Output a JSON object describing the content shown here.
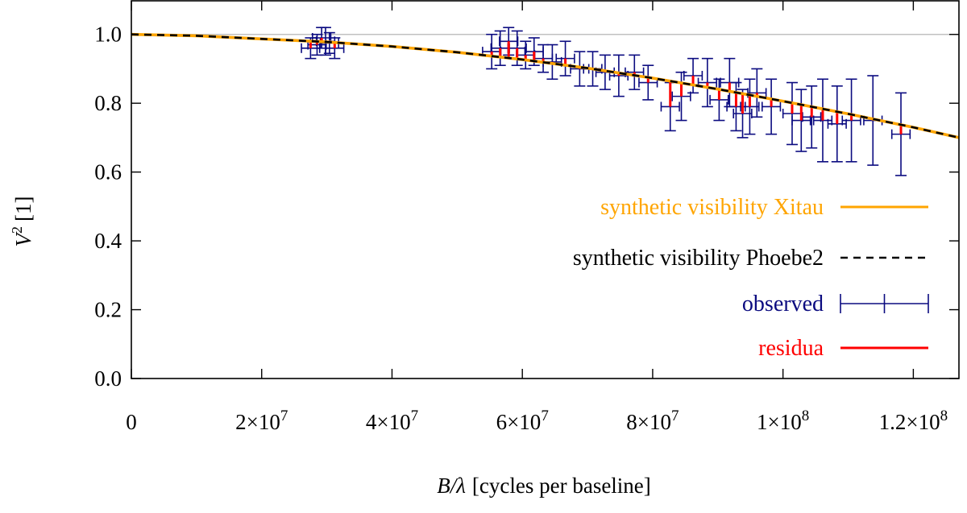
{
  "chart_data": {
    "type": "scatter",
    "title": "",
    "xlabel": {
      "var": "B/λ",
      "unit": "[cycles per baseline]"
    },
    "ylabel": {
      "var": "V",
      "sup": "2",
      "unit": "[1]"
    },
    "xlim": [
      0,
      127000000
    ],
    "ylim": [
      0,
      1.1
    ],
    "x_ticks": [
      {
        "value": 0,
        "base": "0",
        "exp": ""
      },
      {
        "value": 20000000,
        "base": "2×10",
        "exp": "7"
      },
      {
        "value": 40000000,
        "base": "4×10",
        "exp": "7"
      },
      {
        "value": 60000000,
        "base": "6×10",
        "exp": "7"
      },
      {
        "value": 80000000,
        "base": "8×10",
        "exp": "7"
      },
      {
        "value": 100000000,
        "base": "1×10",
        "exp": "8"
      },
      {
        "value": 120000000,
        "base": "1.2×10",
        "exp": "8"
      }
    ],
    "y_ticks": [
      {
        "value": 0.0,
        "label": "0.0"
      },
      {
        "value": 0.2,
        "label": "0.2"
      },
      {
        "value": 0.4,
        "label": "0.4"
      },
      {
        "value": 0.6,
        "label": "0.6"
      },
      {
        "value": 0.8,
        "label": "0.8"
      },
      {
        "value": 1.0,
        "label": "1.0"
      }
    ],
    "reference_line": {
      "y": 1.0,
      "color": "#c0c0c0"
    },
    "legend": {
      "placement": "bottom-right",
      "entries": [
        {
          "label": "synthetic visibility Xitau",
          "color": "#ffa500",
          "style": "solid"
        },
        {
          "label": "synthetic visibility Phoebe2",
          "color": "#000000",
          "style": "dashed"
        },
        {
          "label": "observed",
          "color": "#0b0b80",
          "style": "errorbar"
        },
        {
          "label": "residua",
          "color": "#ff0000",
          "style": "solid"
        }
      ]
    },
    "series": [
      {
        "name": "synthetic visibility Xitau",
        "type": "line",
        "color": "#ffa500",
        "x": [
          0,
          10000000,
          20000000,
          30000000,
          40000000,
          50000000,
          60000000,
          70000000,
          80000000,
          90000000,
          100000000,
          110000000,
          120000000,
          127000000
        ],
        "y": [
          1.0,
          0.996,
          0.987,
          0.978,
          0.965,
          0.948,
          0.927,
          0.902,
          0.873,
          0.841,
          0.806,
          0.769,
          0.73,
          0.7
        ]
      },
      {
        "name": "synthetic visibility Phoebe2",
        "type": "line",
        "color": "#000000",
        "dashed": true,
        "x": [
          0,
          10000000,
          20000000,
          30000000,
          40000000,
          50000000,
          60000000,
          70000000,
          80000000,
          90000000,
          100000000,
          110000000,
          120000000,
          127000000
        ],
        "y": [
          1.0,
          0.996,
          0.987,
          0.978,
          0.965,
          0.948,
          0.927,
          0.902,
          0.873,
          0.841,
          0.806,
          0.769,
          0.73,
          0.7
        ]
      },
      {
        "name": "observed",
        "type": "errorbar",
        "color": "#0b0b80",
        "points": [
          {
            "x": 27500000,
            "y": 0.96,
            "yerr": 0.03,
            "xerr": 1400000
          },
          {
            "x": 28500000,
            "y": 0.97,
            "yerr": 0.03,
            "xerr": 1400000
          },
          {
            "x": 29200000,
            "y": 0.99,
            "yerr": 0.03,
            "xerr": 1400000
          },
          {
            "x": 29800000,
            "y": 0.98,
            "yerr": 0.04,
            "xerr": 1400000
          },
          {
            "x": 30400000,
            "y": 0.975,
            "yerr": 0.03,
            "xerr": 1400000
          },
          {
            "x": 31200000,
            "y": 0.96,
            "yerr": 0.03,
            "xerr": 1400000
          },
          {
            "x": 55300000,
            "y": 0.95,
            "yerr": 0.05,
            "xerr": 1400000
          },
          {
            "x": 56600000,
            "y": 0.96,
            "yerr": 0.05,
            "xerr": 1400000
          },
          {
            "x": 57900000,
            "y": 0.98,
            "yerr": 0.04,
            "xerr": 1400000
          },
          {
            "x": 59200000,
            "y": 0.96,
            "yerr": 0.05,
            "xerr": 1400000
          },
          {
            "x": 60500000,
            "y": 0.94,
            "yerr": 0.04,
            "xerr": 1400000
          },
          {
            "x": 61800000,
            "y": 0.95,
            "yerr": 0.04,
            "xerr": 1400000
          },
          {
            "x": 63200000,
            "y": 0.93,
            "yerr": 0.04,
            "xerr": 1400000
          },
          {
            "x": 64600000,
            "y": 0.92,
            "yerr": 0.05,
            "xerr": 1400000
          },
          {
            "x": 66600000,
            "y": 0.93,
            "yerr": 0.05,
            "xerr": 1400000
          },
          {
            "x": 68800000,
            "y": 0.9,
            "yerr": 0.05,
            "xerr": 1400000
          },
          {
            "x": 70800000,
            "y": 0.9,
            "yerr": 0.05,
            "xerr": 1400000
          },
          {
            "x": 72700000,
            "y": 0.89,
            "yerr": 0.05,
            "xerr": 1400000
          },
          {
            "x": 74800000,
            "y": 0.88,
            "yerr": 0.06,
            "xerr": 1400000
          },
          {
            "x": 77200000,
            "y": 0.89,
            "yerr": 0.05,
            "xerr": 1400000
          },
          {
            "x": 79300000,
            "y": 0.86,
            "yerr": 0.05,
            "xerr": 1400000
          },
          {
            "x": 82700000,
            "y": 0.79,
            "yerr": 0.07,
            "xerr": 1400000
          },
          {
            "x": 84400000,
            "y": 0.82,
            "yerr": 0.07,
            "xerr": 1400000
          },
          {
            "x": 86200000,
            "y": 0.88,
            "yerr": 0.05,
            "xerr": 1400000
          },
          {
            "x": 88400000,
            "y": 0.86,
            "yerr": 0.07,
            "xerr": 1400000
          },
          {
            "x": 90200000,
            "y": 0.81,
            "yerr": 0.06,
            "xerr": 1400000
          },
          {
            "x": 91800000,
            "y": 0.86,
            "yerr": 0.07,
            "xerr": 1400000
          },
          {
            "x": 92800000,
            "y": 0.79,
            "yerr": 0.07,
            "xerr": 1400000
          },
          {
            "x": 93800000,
            "y": 0.77,
            "yerr": 0.07,
            "xerr": 1400000
          },
          {
            "x": 94900000,
            "y": 0.79,
            "yerr": 0.08,
            "xerr": 1400000
          },
          {
            "x": 96000000,
            "y": 0.83,
            "yerr": 0.07,
            "xerr": 1400000
          },
          {
            "x": 98200000,
            "y": 0.79,
            "yerr": 0.08,
            "xerr": 1400000
          },
          {
            "x": 101400000,
            "y": 0.77,
            "yerr": 0.09,
            "xerr": 1400000
          },
          {
            "x": 102800000,
            "y": 0.75,
            "yerr": 0.09,
            "xerr": 1400000
          },
          {
            "x": 104400000,
            "y": 0.76,
            "yerr": 0.09,
            "xerr": 1400000
          },
          {
            "x": 106100000,
            "y": 0.75,
            "yerr": 0.12,
            "xerr": 1400000
          },
          {
            "x": 108300000,
            "y": 0.74,
            "yerr": 0.11,
            "xerr": 1400000
          },
          {
            "x": 110500000,
            "y": 0.75,
            "yerr": 0.12,
            "xerr": 1400000
          },
          {
            "x": 113800000,
            "y": 0.75,
            "yerr": 0.13,
            "xerr": 1400000
          },
          {
            "x": 118100000,
            "y": 0.71,
            "yerr": 0.12,
            "xerr": 1400000
          }
        ]
      },
      {
        "name": "residua",
        "type": "segments",
        "color": "#ff0000",
        "segments": [
          {
            "x": 27500000,
            "y0": 0.96,
            "y1": 0.978
          },
          {
            "x": 28500000,
            "y0": 0.97,
            "y1": 0.978
          },
          {
            "x": 29200000,
            "y0": 0.99,
            "y1": 0.978
          },
          {
            "x": 30400000,
            "y0": 0.975,
            "y1": 0.978
          },
          {
            "x": 31200000,
            "y0": 0.96,
            "y1": 0.976
          },
          {
            "x": 55300000,
            "y0": 0.95,
            "y1": 0.937
          },
          {
            "x": 56600000,
            "y0": 0.96,
            "y1": 0.935
          },
          {
            "x": 57900000,
            "y0": 0.98,
            "y1": 0.932
          },
          {
            "x": 59200000,
            "y0": 0.96,
            "y1": 0.929
          },
          {
            "x": 60500000,
            "y0": 0.94,
            "y1": 0.926
          },
          {
            "x": 61800000,
            "y0": 0.95,
            "y1": 0.923
          },
          {
            "x": 63200000,
            "y0": 0.93,
            "y1": 0.919
          },
          {
            "x": 64600000,
            "y0": 0.92,
            "y1": 0.916
          },
          {
            "x": 66600000,
            "y0": 0.93,
            "y1": 0.911
          },
          {
            "x": 68800000,
            "y0": 0.9,
            "y1": 0.905
          },
          {
            "x": 70800000,
            "y0": 0.9,
            "y1": 0.9
          },
          {
            "x": 72700000,
            "y0": 0.89,
            "y1": 0.894
          },
          {
            "x": 74800000,
            "y0": 0.88,
            "y1": 0.888
          },
          {
            "x": 77200000,
            "y0": 0.89,
            "y1": 0.881
          },
          {
            "x": 79300000,
            "y0": 0.86,
            "y1": 0.875
          },
          {
            "x": 82700000,
            "y0": 0.79,
            "y1": 0.864
          },
          {
            "x": 84400000,
            "y0": 0.82,
            "y1": 0.859
          },
          {
            "x": 86200000,
            "y0": 0.88,
            "y1": 0.853
          },
          {
            "x": 88400000,
            "y0": 0.86,
            "y1": 0.846
          },
          {
            "x": 90200000,
            "y0": 0.81,
            "y1": 0.84
          },
          {
            "x": 91800000,
            "y0": 0.86,
            "y1": 0.835
          },
          {
            "x": 92800000,
            "y0": 0.79,
            "y1": 0.831
          },
          {
            "x": 93800000,
            "y0": 0.77,
            "y1": 0.828
          },
          {
            "x": 94900000,
            "y0": 0.79,
            "y1": 0.824
          },
          {
            "x": 96000000,
            "y0": 0.83,
            "y1": 0.82
          },
          {
            "x": 98200000,
            "y0": 0.79,
            "y1": 0.812
          },
          {
            "x": 101400000,
            "y0": 0.77,
            "y1": 0.801
          },
          {
            "x": 102800000,
            "y0": 0.75,
            "y1": 0.796
          },
          {
            "x": 104400000,
            "y0": 0.76,
            "y1": 0.79
          },
          {
            "x": 106100000,
            "y0": 0.75,
            "y1": 0.784
          },
          {
            "x": 108300000,
            "y0": 0.74,
            "y1": 0.776
          },
          {
            "x": 110500000,
            "y0": 0.75,
            "y1": 0.768
          },
          {
            "x": 113800000,
            "y0": 0.75,
            "y1": 0.756
          },
          {
            "x": 118100000,
            "y0": 0.71,
            "y1": 0.739
          }
        ]
      }
    ]
  }
}
